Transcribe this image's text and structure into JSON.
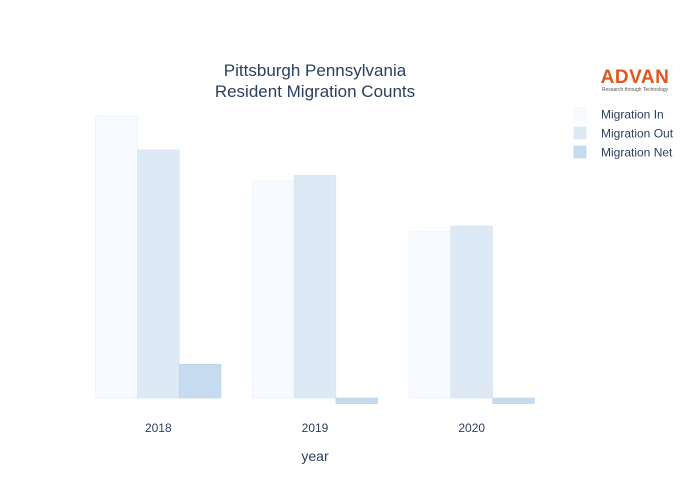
{
  "chart_data": {
    "type": "bar",
    "title_lines": [
      "Pittsburgh Pennsylvania",
      "Resident Migration Counts"
    ],
    "xlabel": "year",
    "ylabel": "",
    "categories": [
      "2018",
      "2019",
      "2020"
    ],
    "series": [
      {
        "name": "Migration In",
        "values": [
          1.0,
          0.77,
          0.59
        ],
        "color": "#f7fbff",
        "stroke": "#e6eef8"
      },
      {
        "name": "Migration Out",
        "values": [
          0.88,
          0.79,
          0.61
        ],
        "color": "#dee9f6",
        "stroke": "#d0dff0"
      },
      {
        "name": "Migration Net",
        "values": [
          0.12,
          -0.02,
          -0.02
        ],
        "color": "#c6dbef",
        "stroke": "#b8d0ea"
      }
    ],
    "ylim": [
      -0.03,
      1.0
    ],
    "legend_position": "top-right",
    "grid": false
  },
  "logo": {
    "main": "ADVAN",
    "sub": "Research through Technology"
  }
}
